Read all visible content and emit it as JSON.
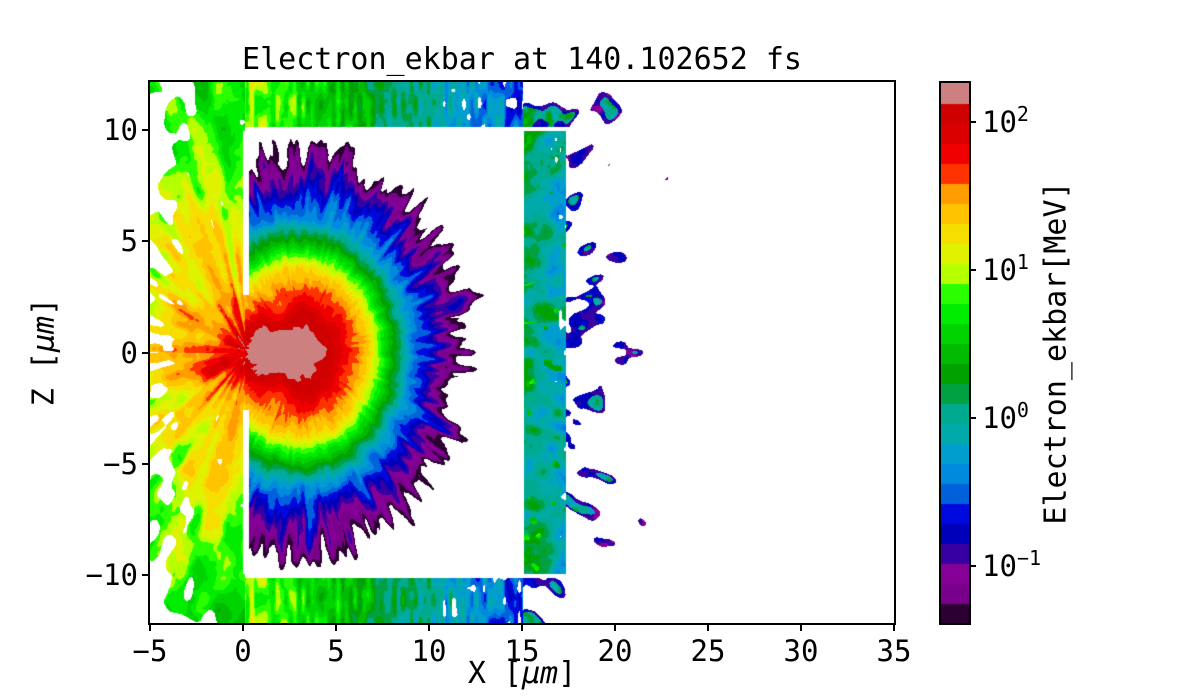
{
  "figure": {
    "title": "Electron_ekbar at 140.102652 fs"
  },
  "axes": {
    "xlabel": {
      "pre": "X [",
      "unit": "μm",
      "post": "]"
    },
    "ylabel": {
      "pre": "Z [",
      "unit": "μm",
      "post": "]"
    },
    "xticks": [
      "−5",
      "0",
      "5",
      "10",
      "15",
      "20",
      "25",
      "30",
      "35"
    ],
    "xtick_values": [
      -5,
      0,
      5,
      10,
      15,
      20,
      25,
      30,
      35
    ],
    "yticks": [
      "10",
      "5",
      "0",
      "−5",
      "−10"
    ],
    "ytick_values": [
      10,
      5,
      0,
      -5,
      -10
    ]
  },
  "colorbar": {
    "label": "Electron_ekbar[MeV]",
    "ticks": [
      {
        "mant": "10",
        "exp": "2",
        "value": 100
      },
      {
        "mant": "10",
        "exp": "1",
        "value": 10
      },
      {
        "mant": "10",
        "exp": "0",
        "value": 1
      },
      {
        "mant": "10",
        "exp": "−1",
        "value": 0.1
      }
    ]
  },
  "chart_data": {
    "type": "heatmap",
    "title": "Electron_ekbar at 140.102652 fs",
    "time_fs": 140.102652,
    "xlabel": "X [μm]",
    "ylabel": "Z [μm]",
    "colorbar_label": "Electron_ekbar[MeV]",
    "x_range": [
      -5,
      35
    ],
    "z_range": [
      -12.15,
      12.15
    ],
    "scale": "log10",
    "value_range_mev": [
      0.041,
      184
    ],
    "log_range": [
      -1.385,
      2.264
    ],
    "n_bands": 27,
    "colormap": "nipy_spectral",
    "colormap_anchors": [
      [
        0,
        0,
        0
      ],
      [
        119,
        0,
        136
      ],
      [
        136,
        0,
        153
      ],
      [
        0,
        0,
        170
      ],
      [
        0,
        0,
        221
      ],
      [
        0,
        119,
        221
      ],
      [
        0,
        153,
        221
      ],
      [
        0,
        170,
        170
      ],
      [
        0,
        170,
        136
      ],
      [
        0,
        153,
        0
      ],
      [
        0,
        187,
        0
      ],
      [
        0,
        221,
        0
      ],
      [
        0,
        255,
        0
      ],
      [
        187,
        255,
        0
      ],
      [
        238,
        238,
        0
      ],
      [
        255,
        204,
        0
      ],
      [
        255,
        153,
        0
      ],
      [
        255,
        0,
        0
      ],
      [
        221,
        0,
        0
      ],
      [
        204,
        0,
        0
      ],
      [
        204,
        204,
        204
      ]
    ],
    "structure": {
      "description": "Laser-plasma electron mean kinetic energy map: hot red core with gray-pink center at (3,0); concentric log-decaying spiky disc (yellow/green/teal/blue/purple) of radius ~9 um inside white-bordered box x=[0,15], z=[-10,10]; green/yellow streak fan radiating left of x=0; dense green-to-blue bands just outside box edges; scattered radial cyan/blue blobs with purple rims out to x~23; white elsewhere.",
      "box": {
        "x": [
          0,
          15
        ],
        "z": [
          -10,
          10
        ]
      },
      "disc": {
        "center": [
          3,
          0
        ],
        "r_table": [
          0,
          1,
          2,
          3,
          3.8,
          4.5,
          5.2,
          6,
          7,
          8,
          9,
          10.5
        ],
        "v_table": [
          2.3,
          2.18,
          1.95,
          1.58,
          1.28,
          0.78,
          0.28,
          -0.3,
          -0.67,
          -1.0,
          -1.35,
          -1.95
        ],
        "gray_spot": {
          "amp": 0.35,
          "sigma2": 0.22
        },
        "west_bump": {
          "amp": 0.5,
          "x_center": 0,
          "x_sigma2": 4.0,
          "z_sigma2": 3.61
        },
        "neck_dip": {
          "amp": 0.3,
          "x_center": 1.9,
          "x_sigma2": 0.56,
          "z_center": 1.8,
          "z_sigma2": 0.72
        }
      },
      "fan": {
        "origin": [
          0.3,
          0
        ],
        "base": 1.55,
        "slope": 0.075,
        "inner_amp": 0.3,
        "inner_k": 0.5,
        "red_amp": 0.25
      },
      "band_top_bottom": {
        "x": [
          0.12,
          15.05
        ],
        "base": 1.02,
        "slope": 0.105
      },
      "band_right": {
        "x": [
          15.12,
          17.35
        ],
        "base": 0.12,
        "slope": 0.1
      },
      "spray": {
        "r_base_side": 14.4,
        "r_base_corner": 16.0,
        "r_max": 23.5,
        "thresh0": 0.5,
        "thresh_slope": 0.058
      }
    }
  }
}
